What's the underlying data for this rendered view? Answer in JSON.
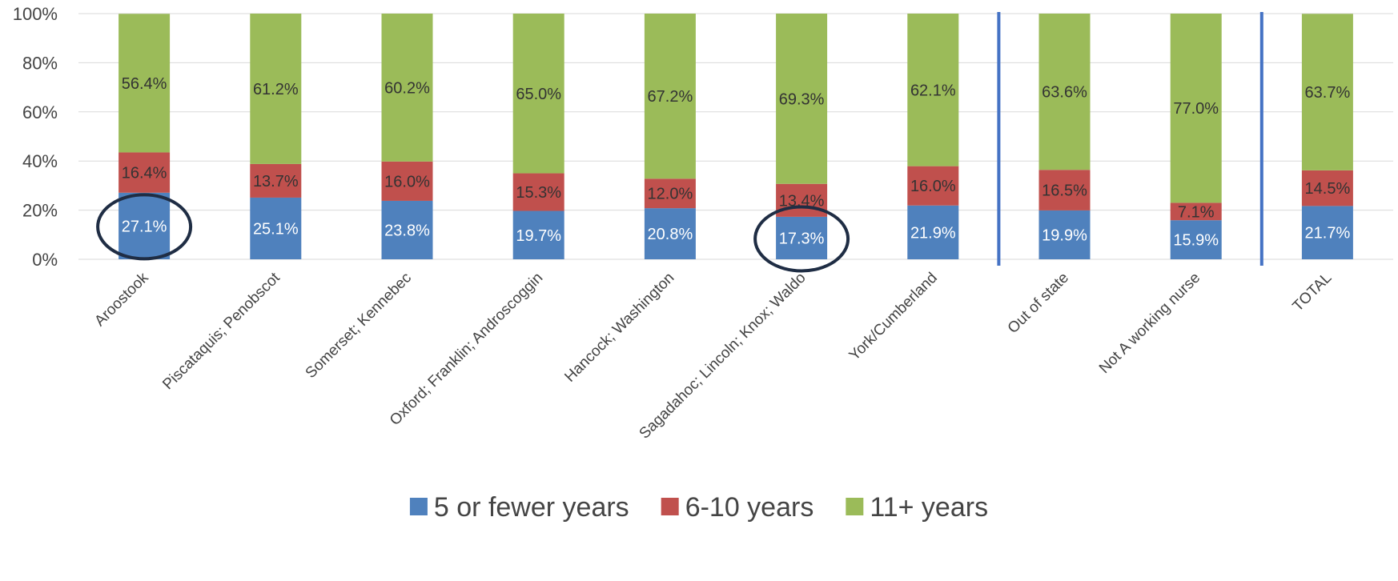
{
  "chart_data": {
    "type": "bar",
    "stacked": true,
    "categories": [
      "Aroostook",
      "Piscataquis; Penobscot",
      "Somerset; Kennebec",
      "Oxford; Franklin; Androscoggin",
      "Hancock; Washington",
      "Sagadahoc; Lincoln; Knox; Waldo",
      "York/Cumberland",
      "Out of state",
      "Not A working nurse",
      "TOTAL"
    ],
    "series": [
      {
        "name": "5 or fewer years",
        "color": "#4F81BD",
        "label_color": "#ffffff",
        "values": [
          27.1,
          25.1,
          23.8,
          19.7,
          20.8,
          17.3,
          21.9,
          19.9,
          15.9,
          21.7
        ]
      },
      {
        "name": "6-10 years",
        "color": "#C0504D",
        "label_color": "#333333",
        "values": [
          16.4,
          13.7,
          16.0,
          15.3,
          12.0,
          13.4,
          16.0,
          16.5,
          7.1,
          14.5
        ]
      },
      {
        "name": "11+ years",
        "color": "#9BBB59",
        "label_color": "#333333",
        "values": [
          56.4,
          61.2,
          60.2,
          65.0,
          67.2,
          69.3,
          62.1,
          63.6,
          77.0,
          63.7
        ]
      }
    ],
    "data_label_suffix": "%",
    "ylim": [
      0,
      100
    ],
    "yticks": [
      "0%",
      "20%",
      "40%",
      "60%",
      "80%",
      "100%"
    ],
    "xlabel": "",
    "ylabel": "",
    "grid": true,
    "legend": "bottom-center",
    "separators_after_category": [
      "York/Cumberland",
      "Not A working nurse"
    ],
    "separator_color": "#4472C4",
    "highlight_circles": [
      "Aroostook",
      "Sagadahoc; Lincoln; Knox; Waldo"
    ],
    "highlight_color": "#1F2D44"
  }
}
